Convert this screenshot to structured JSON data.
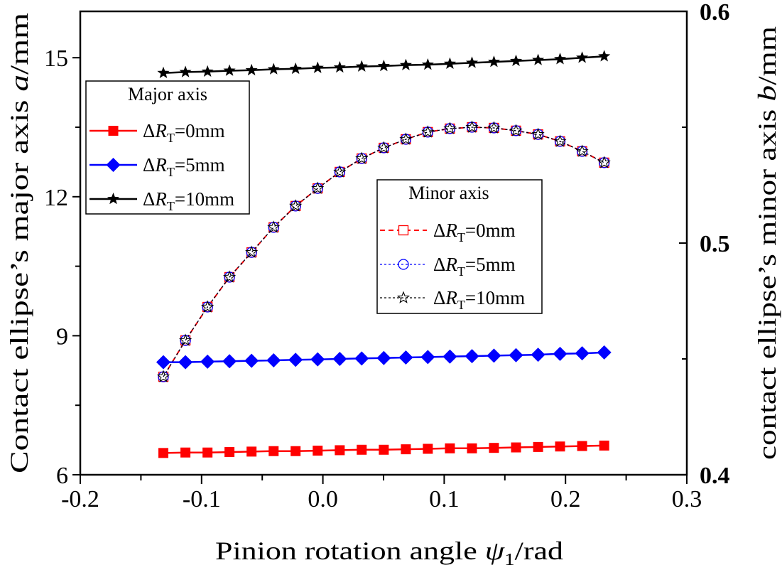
{
  "chart_data": {
    "type": "line",
    "xlabel": {
      "pre": "Pinion rotation angle ",
      "var": "ψ",
      "sub": "1",
      "post": "/rad"
    },
    "ylabel_left": {
      "pre": "Contact ellipse’s major axis ",
      "var": "a",
      "post": "/mm"
    },
    "ylabel_right": {
      "pre": "contact ellipse’s minor axis ",
      "var": "b",
      "post": "/mm"
    },
    "xlim": [
      -0.2,
      0.3
    ],
    "ylim_left": [
      6,
      16
    ],
    "ylim_right": [
      0.4,
      0.6
    ],
    "x_ticks": [
      "-0.2",
      "-0.1",
      "0.0",
      "0.1",
      "0.2",
      "0.3"
    ],
    "x_tick_values": [
      -0.2,
      -0.1,
      0.0,
      0.1,
      0.2,
      0.3
    ],
    "y_left_ticks": [
      "6",
      "9",
      "12",
      "15"
    ],
    "y_left_tick_values": [
      6,
      9,
      12,
      15
    ],
    "y_right_ticks": [
      "0.4",
      "0.5",
      "0.6"
    ],
    "y_right_tick_values": [
      0.4,
      0.5,
      0.6
    ],
    "x": [
      -0.1315,
      -0.1133,
      -0.0951,
      -0.077,
      -0.0588,
      -0.0406,
      -0.0225,
      -0.0043,
      0.0139,
      0.032,
      0.0502,
      0.0684,
      0.0865,
      0.1047,
      0.1229,
      0.141,
      0.1592,
      0.1774,
      0.1955,
      0.2137,
      0.2319
    ],
    "series": [
      {
        "name": "Major axis ΔRT=0mm",
        "axis": "left",
        "color": "#ff0000",
        "marker": "square-filled",
        "dash": "solid",
        "values": [
          6.47,
          6.48,
          6.48,
          6.49,
          6.5,
          6.51,
          6.51,
          6.52,
          6.53,
          6.54,
          6.54,
          6.55,
          6.56,
          6.57,
          6.57,
          6.58,
          6.59,
          6.6,
          6.61,
          6.62,
          6.63
        ]
      },
      {
        "name": "Major axis ΔRT=5mm",
        "axis": "left",
        "color": "#0000ff",
        "marker": "diamond-filled",
        "dash": "solid",
        "values": [
          8.43,
          8.43,
          8.44,
          8.45,
          8.46,
          8.47,
          8.48,
          8.49,
          8.5,
          8.51,
          8.52,
          8.53,
          8.54,
          8.55,
          8.56,
          8.57,
          8.58,
          8.59,
          8.61,
          8.62,
          8.64
        ]
      },
      {
        "name": "Major axis ΔRT=10mm",
        "axis": "left",
        "color": "#000000",
        "marker": "star-filled",
        "dash": "solid",
        "values": [
          14.67,
          14.69,
          14.7,
          14.72,
          14.73,
          14.75,
          14.76,
          14.78,
          14.79,
          14.81,
          14.82,
          14.84,
          14.85,
          14.87,
          14.89,
          14.91,
          14.93,
          14.95,
          14.97,
          15.0,
          15.03
        ]
      },
      {
        "name": "Minor axis ΔRT=0mm",
        "axis": "right",
        "color": "#ff0000",
        "marker": "square-open",
        "dash": "dash",
        "values": [
          0.4423,
          0.458,
          0.4724,
          0.4853,
          0.496,
          0.5068,
          0.516,
          0.5236,
          0.5307,
          0.5365,
          0.5411,
          0.5448,
          0.5479,
          0.5494,
          0.55,
          0.5497,
          0.5485,
          0.5469,
          0.5439,
          0.5396,
          0.5347
        ]
      },
      {
        "name": "Minor axis ΔRT=5mm",
        "axis": "right",
        "color": "#0000ff",
        "marker": "circle-open",
        "dash": "dot",
        "values": [
          0.4423,
          0.458,
          0.4724,
          0.4853,
          0.496,
          0.5068,
          0.516,
          0.5236,
          0.5307,
          0.5365,
          0.5411,
          0.5448,
          0.5479,
          0.5494,
          0.55,
          0.5497,
          0.5485,
          0.5469,
          0.5439,
          0.5396,
          0.5347
        ]
      },
      {
        "name": "Minor axis ΔRT=10mm",
        "axis": "right",
        "color": "#000000",
        "marker": "star-open",
        "dash": "dot",
        "values": [
          0.4423,
          0.458,
          0.4724,
          0.4853,
          0.496,
          0.5068,
          0.516,
          0.5236,
          0.5307,
          0.5365,
          0.5411,
          0.5448,
          0.5479,
          0.5494,
          0.55,
          0.5497,
          0.5485,
          0.5469,
          0.5439,
          0.5396,
          0.5347
        ]
      }
    ],
    "legends": [
      {
        "title": "Major axis",
        "placement": "upper-left",
        "entries": [
          {
            "series": 0,
            "label_pre": "Δ",
            "label_var": "R",
            "label_sub": "T",
            "label_post": "=0mm"
          },
          {
            "series": 1,
            "label_pre": "Δ",
            "label_var": "R",
            "label_sub": "T",
            "label_post": "=5mm"
          },
          {
            "series": 2,
            "label_pre": "Δ",
            "label_var": "R",
            "label_sub": "T",
            "label_post": "=10mm"
          }
        ]
      },
      {
        "title": "Minor axis",
        "placement": "center-right",
        "entries": [
          {
            "series": 3,
            "label_pre": "Δ",
            "label_var": "R",
            "label_sub": "T",
            "label_post": "=0mm"
          },
          {
            "series": 4,
            "label_pre": "Δ",
            "label_var": "R",
            "label_sub": "T",
            "label_post": "=5mm"
          },
          {
            "series": 5,
            "label_pre": "Δ",
            "label_var": "R",
            "label_sub": "T",
            "label_post": "=10mm"
          }
        ]
      }
    ]
  }
}
